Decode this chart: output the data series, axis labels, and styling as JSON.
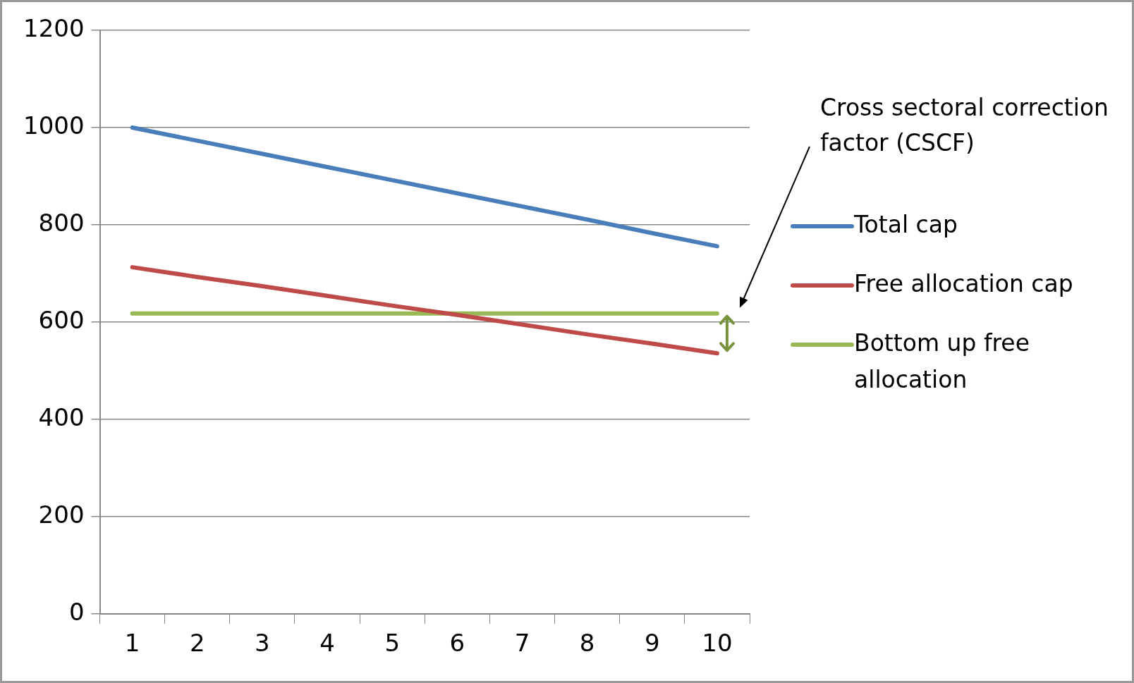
{
  "chart_data": {
    "type": "line",
    "categories": [
      "1",
      "2",
      "3",
      "4",
      "5",
      "6",
      "7",
      "8",
      "9",
      "10"
    ],
    "series": [
      {
        "name": "Total cap",
        "color": "#4a7ebb",
        "values": [
          1000,
          973,
          946,
          919,
          892,
          865,
          838,
          811,
          783,
          756
        ]
      },
      {
        "name": "Free allocation cap",
        "color": "#be4b48",
        "values": [
          713,
          693,
          674,
          654,
          634,
          615,
          595,
          575,
          556,
          536
        ]
      },
      {
        "name": "Bottom up free allocation",
        "color": "#98b954",
        "values": [
          618,
          618,
          618,
          618,
          618,
          618,
          618,
          618,
          618,
          618
        ]
      }
    ],
    "ylim": [
      0,
      1200
    ],
    "yticks": [
      0,
      200,
      400,
      600,
      800,
      1000,
      1200
    ],
    "grid": "y",
    "legend": "right",
    "marker": "none",
    "line_style": "solid",
    "annotations": [
      "Cross sectoral correction factor (CSCF)"
    ]
  }
}
